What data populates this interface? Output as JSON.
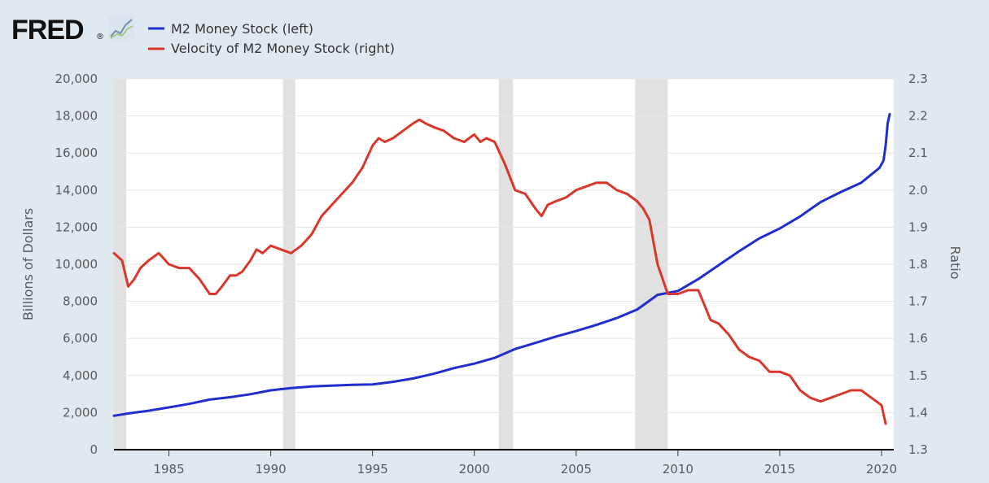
{
  "brand": {
    "logo_text": "FRED",
    "logo_mark": "®"
  },
  "colors": {
    "background": "#e1e9f0",
    "plot_bg": "#ffffff",
    "recession": "#e1e1e1",
    "m2": "#1f2ecc",
    "velocity": "#d9372b",
    "axis": "#000000"
  },
  "chart_data": {
    "type": "line",
    "xlim": [
      1982.3,
      2020.6
    ],
    "x_ticks": [
      "1985",
      "1990",
      "1995",
      "2000",
      "2005",
      "2010",
      "2015",
      "2020"
    ],
    "ylabel_left": "Billions of Dollars",
    "ylabel_right": "Ratio",
    "ylim_left": [
      0,
      20000
    ],
    "ylim_right": [
      1.3,
      2.3
    ],
    "y_ticks_left": [
      "0",
      "2,000",
      "4,000",
      "6,000",
      "8,000",
      "10,000",
      "12,000",
      "14,000",
      "16,000",
      "18,000",
      "20,000"
    ],
    "y_ticks_right": [
      "1.3",
      "1.4",
      "1.5",
      "1.6",
      "1.7",
      "1.8",
      "1.9",
      "2.0",
      "2.1",
      "2.2",
      "2.3"
    ],
    "grid": true,
    "legend_position": "top-left",
    "recessions": [
      [
        1982.3,
        1982.9
      ],
      [
        1990.6,
        1991.2
      ],
      [
        2001.2,
        2001.9
      ],
      [
        2007.9,
        2009.5
      ]
    ],
    "series": [
      {
        "name": "M2 Money Stock (left)",
        "axis": "left",
        "x": [
          1982.3,
          1983,
          1984,
          1985,
          1986,
          1987,
          1988,
          1989,
          1990,
          1991,
          1992,
          1993,
          1994,
          1995,
          1996,
          1997,
          1998,
          1999,
          2000,
          2001,
          2002,
          2003,
          2004,
          2005,
          2006,
          2007,
          2008,
          2009,
          2010,
          2011,
          2012,
          2013,
          2014,
          2015,
          2016,
          2017,
          2018,
          2019,
          2019.9,
          2020.1,
          2020.2,
          2020.3,
          2020.4
        ],
        "y": [
          1830,
          1950,
          2100,
          2280,
          2470,
          2700,
          2830,
          2990,
          3200,
          3320,
          3410,
          3450,
          3500,
          3520,
          3660,
          3840,
          4090,
          4400,
          4640,
          4950,
          5430,
          5760,
          6100,
          6400,
          6730,
          7100,
          7560,
          8350,
          8560,
          9200,
          9950,
          10700,
          11400,
          11930,
          12580,
          13350,
          13900,
          14400,
          15200,
          15600,
          16400,
          17600,
          18100
        ]
      },
      {
        "name": "Velocity of M2 Money Stock (right)",
        "axis": "right",
        "x": [
          1982.3,
          1982.7,
          1983,
          1983.3,
          1983.6,
          1984,
          1984.5,
          1985,
          1985.5,
          1986,
          1986.5,
          1987,
          1987.3,
          1987.6,
          1988,
          1988.3,
          1988.6,
          1989,
          1989.3,
          1989.6,
          1990,
          1990.5,
          1991,
          1991.5,
          1992,
          1992.5,
          1993,
          1993.5,
          1994,
          1994.5,
          1995,
          1995.3,
          1995.6,
          1996,
          1996.5,
          1997,
          1997.3,
          1997.6,
          1998,
          1998.5,
          1999,
          1999.5,
          2000,
          2000.3,
          2000.6,
          2001,
          2001.5,
          2002,
          2002.5,
          2003,
          2003.3,
          2003.6,
          2004,
          2004.5,
          2005,
          2005.5,
          2006,
          2006.5,
          2007,
          2007.5,
          2008,
          2008.3,
          2008.6,
          2009,
          2009.5,
          2010,
          2010.5,
          2011,
          2011.3,
          2011.6,
          2012,
          2012.5,
          2013,
          2013.5,
          2014,
          2014.5,
          2015,
          2015.5,
          2016,
          2016.5,
          2017,
          2017.5,
          2018,
          2018.5,
          2019,
          2019.5,
          2020,
          2020.2
        ],
        "y": [
          1.83,
          1.81,
          1.74,
          1.76,
          1.79,
          1.81,
          1.83,
          1.8,
          1.79,
          1.79,
          1.76,
          1.72,
          1.72,
          1.74,
          1.77,
          1.77,
          1.78,
          1.81,
          1.84,
          1.83,
          1.85,
          1.84,
          1.83,
          1.85,
          1.88,
          1.93,
          1.96,
          1.99,
          2.02,
          2.06,
          2.12,
          2.14,
          2.13,
          2.14,
          2.16,
          2.18,
          2.19,
          2.18,
          2.17,
          2.16,
          2.14,
          2.13,
          2.15,
          2.13,
          2.14,
          2.13,
          2.07,
          2.0,
          1.99,
          1.95,
          1.93,
          1.96,
          1.97,
          1.98,
          2.0,
          2.01,
          2.02,
          2.02,
          2.0,
          1.99,
          1.97,
          1.95,
          1.92,
          1.8,
          1.72,
          1.72,
          1.73,
          1.73,
          1.69,
          1.65,
          1.64,
          1.61,
          1.57,
          1.55,
          1.54,
          1.51,
          1.51,
          1.5,
          1.46,
          1.44,
          1.43,
          1.44,
          1.45,
          1.46,
          1.46,
          1.44,
          1.42,
          1.37
        ]
      }
    ]
  }
}
